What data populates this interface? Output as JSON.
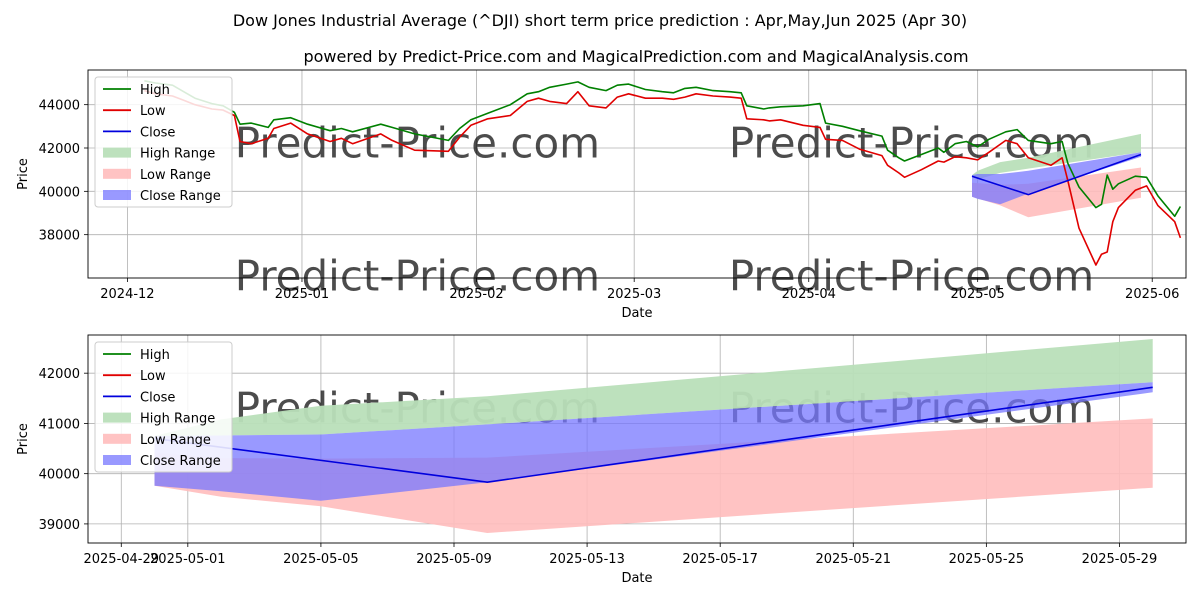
{
  "title": "Dow Jones Industrial Average (^DJI) short term price prediction : Apr,May,Jun 2025 (Apr 30)",
  "subtitle": "powered by Predict-Price.com and MagicalPrediction.com and MagicalAnalysis.com",
  "watermark": "Predict-Price.com",
  "colors": {
    "high": "#008000",
    "low": "#e00000",
    "close": "#0000dd",
    "high_range": "#b9dfb9",
    "low_range": "#ffbcbc",
    "close_range": "#7777ff"
  },
  "chart_data": [
    {
      "type": "line",
      "xlabel": "Date",
      "ylabel": "Price",
      "xlim": [
        "2024-11-24",
        "2025-06-07"
      ],
      "ylim": [
        36000,
        45600
      ],
      "yticks": [
        38000,
        40000,
        42000,
        44000
      ],
      "xticks": [
        {
          "date": "2024-12-01",
          "label": "2024-12"
        },
        {
          "date": "2025-01-01",
          "label": "2025-01"
        },
        {
          "date": "2025-02-01",
          "label": "2025-02"
        },
        {
          "date": "2025-03-01",
          "label": "2025-03"
        },
        {
          "date": "2025-04-01",
          "label": "2025-04"
        },
        {
          "date": "2025-05-01",
          "label": "2025-05"
        },
        {
          "date": "2025-06-01",
          "label": "2025-06"
        }
      ],
      "legend": {
        "position": "top-left",
        "entries": [
          "High",
          "Low",
          "Close",
          "High Range",
          "Low Range",
          "Close Range"
        ]
      },
      "grid": true,
      "series": [
        {
          "name": "High",
          "points": [
            [
              "2024-12-04",
              45100
            ],
            [
              "2024-12-06",
              45000
            ],
            [
              "2024-12-09",
              44900
            ],
            [
              "2024-12-11",
              44600
            ],
            [
              "2024-12-13",
              44300
            ],
            [
              "2024-12-16",
              44050
            ],
            [
              "2024-12-18",
              43950
            ],
            [
              "2024-12-20",
              43650
            ],
            [
              "2024-12-21",
              43100
            ],
            [
              "2024-12-23",
              43150
            ],
            [
              "2024-12-26",
              42950
            ],
            [
              "2024-12-27",
              43300
            ],
            [
              "2024-12-30",
              43400
            ],
            [
              "2025-01-02",
              43100
            ],
            [
              "2025-01-06",
              42800
            ],
            [
              "2025-01-08",
              42900
            ],
            [
              "2025-01-10",
              42750
            ],
            [
              "2025-01-15",
              43100
            ],
            [
              "2025-01-17",
              42950
            ],
            [
              "2025-01-21",
              42650
            ],
            [
              "2025-01-27",
              42350
            ],
            [
              "2025-01-29",
              42900
            ],
            [
              "2025-01-31",
              43300
            ],
            [
              "2025-02-03",
              43600
            ],
            [
              "2025-02-07",
              44000
            ],
            [
              "2025-02-10",
              44500
            ],
            [
              "2025-02-12",
              44600
            ],
            [
              "2025-02-14",
              44800
            ],
            [
              "2025-02-17",
              44950
            ],
            [
              "2025-02-19",
              45050
            ],
            [
              "2025-02-21",
              44800
            ],
            [
              "2025-02-24",
              44650
            ],
            [
              "2025-02-26",
              44900
            ],
            [
              "2025-02-28",
              44950
            ],
            [
              "2025-03-03",
              44700
            ],
            [
              "2025-03-06",
              44600
            ],
            [
              "2025-03-08",
              44550
            ],
            [
              "2025-03-10",
              44750
            ],
            [
              "2025-03-12",
              44800
            ],
            [
              "2025-03-15",
              44650
            ],
            [
              "2025-03-18",
              44600
            ],
            [
              "2025-03-20",
              44550
            ],
            [
              "2025-03-21",
              43950
            ],
            [
              "2025-03-24",
              43800
            ],
            [
              "2025-03-25",
              43850
            ],
            [
              "2025-03-27",
              43900
            ],
            [
              "2025-03-31",
              43950
            ],
            [
              "2025-04-03",
              44050
            ],
            [
              "2025-04-04",
              43150
            ],
            [
              "2025-04-07",
              43000
            ],
            [
              "2025-04-10",
              42800
            ],
            [
              "2025-04-14",
              42550
            ],
            [
              "2025-04-15",
              41900
            ],
            [
              "2025-04-17",
              41550
            ],
            [
              "2025-04-18",
              41400
            ],
            [
              "2025-04-21",
              41700
            ],
            [
              "2025-04-24",
              42000
            ],
            [
              "2025-04-25",
              41800
            ],
            [
              "2025-04-27",
              42200
            ],
            [
              "2025-04-29",
              42300
            ],
            [
              "2025-05-01",
              42050
            ],
            [
              "2025-05-03",
              42400
            ],
            [
              "2025-05-06",
              42750
            ],
            [
              "2025-05-08",
              42850
            ],
            [
              "2025-05-10",
              42350
            ],
            [
              "2025-05-14",
              42200
            ],
            [
              "2025-05-16",
              42300
            ],
            [
              "2025-05-17",
              41300
            ],
            [
              "2025-05-19",
              40200
            ],
            [
              "2025-05-22",
              39250
            ],
            [
              "2025-05-23",
              39400
            ],
            [
              "2025-05-24",
              40750
            ],
            [
              "2025-05-25",
              40100
            ],
            [
              "2025-05-26",
              40350
            ],
            [
              "2025-05-29",
              40700
            ],
            [
              "2025-05-31",
              40650
            ],
            [
              "2025-06-02",
              39800
            ],
            [
              "2025-06-05",
              38850
            ],
            [
              "2025-06-06",
              39300
            ]
          ]
        },
        {
          "name": "Low",
          "points": [
            [
              "2024-12-04",
              44650
            ],
            [
              "2024-12-06",
              44500
            ],
            [
              "2024-12-09",
              44400
            ],
            [
              "2024-12-11",
              44200
            ],
            [
              "2024-12-13",
              44000
            ],
            [
              "2024-12-16",
              43800
            ],
            [
              "2024-12-18",
              43750
            ],
            [
              "2024-12-20",
              43500
            ],
            [
              "2024-12-21",
              42300
            ],
            [
              "2024-12-23",
              42200
            ],
            [
              "2024-12-26",
              42450
            ],
            [
              "2024-12-27",
              42900
            ],
            [
              "2024-12-30",
              43150
            ],
            [
              "2025-01-02",
              42650
            ],
            [
              "2025-01-06",
              42300
            ],
            [
              "2025-01-08",
              42450
            ],
            [
              "2025-01-10",
              42200
            ],
            [
              "2025-01-15",
              42650
            ],
            [
              "2025-01-17",
              42350
            ],
            [
              "2025-01-21",
              41900
            ],
            [
              "2025-01-27",
              41850
            ],
            [
              "2025-01-29",
              42500
            ],
            [
              "2025-01-31",
              43050
            ],
            [
              "2025-02-03",
              43350
            ],
            [
              "2025-02-07",
              43500
            ],
            [
              "2025-02-10",
              44150
            ],
            [
              "2025-02-12",
              44300
            ],
            [
              "2025-02-14",
              44150
            ],
            [
              "2025-02-17",
              44050
            ],
            [
              "2025-02-19",
              44600
            ],
            [
              "2025-02-21",
              43950
            ],
            [
              "2025-02-24",
              43850
            ],
            [
              "2025-02-26",
              44350
            ],
            [
              "2025-02-28",
              44500
            ],
            [
              "2025-03-03",
              44300
            ],
            [
              "2025-03-06",
              44300
            ],
            [
              "2025-03-08",
              44250
            ],
            [
              "2025-03-10",
              44350
            ],
            [
              "2025-03-12",
              44500
            ],
            [
              "2025-03-15",
              44400
            ],
            [
              "2025-03-18",
              44350
            ],
            [
              "2025-03-20",
              44300
            ],
            [
              "2025-03-21",
              43350
            ],
            [
              "2025-03-24",
              43300
            ],
            [
              "2025-03-25",
              43250
            ],
            [
              "2025-03-27",
              43300
            ],
            [
              "2025-03-31",
              43050
            ],
            [
              "2025-04-03",
              42950
            ],
            [
              "2025-04-04",
              42400
            ],
            [
              "2025-04-07",
              42350
            ],
            [
              "2025-04-10",
              41950
            ],
            [
              "2025-04-14",
              41650
            ],
            [
              "2025-04-15",
              41200
            ],
            [
              "2025-04-17",
              40850
            ],
            [
              "2025-04-18",
              40650
            ],
            [
              "2025-04-21",
              41000
            ],
            [
              "2025-04-24",
              41400
            ],
            [
              "2025-04-25",
              41350
            ],
            [
              "2025-04-27",
              41600
            ],
            [
              "2025-04-29",
              41550
            ],
            [
              "2025-05-01",
              41450
            ],
            [
              "2025-05-03",
              41800
            ],
            [
              "2025-05-06",
              42350
            ],
            [
              "2025-05-08",
              42200
            ],
            [
              "2025-05-10",
              41550
            ],
            [
              "2025-05-14",
              41200
            ],
            [
              "2025-05-16",
              41550
            ],
            [
              "2025-05-17",
              40500
            ],
            [
              "2025-05-19",
              38300
            ],
            [
              "2025-05-22",
              36600
            ],
            [
              "2025-05-23",
              37100
            ],
            [
              "2025-05-24",
              37200
            ],
            [
              "2025-05-25",
              38600
            ],
            [
              "2025-05-26",
              39250
            ],
            [
              "2025-05-29",
              40050
            ],
            [
              "2025-05-31",
              40250
            ],
            [
              "2025-06-02",
              39350
            ],
            [
              "2025-06-05",
              38600
            ],
            [
              "2025-06-06",
              37850
            ]
          ]
        },
        {
          "name": "Close",
          "points": [
            [
              "2025-04-30",
              40700
            ],
            [
              "2025-05-10",
              39850
            ],
            [
              "2025-05-30",
              41700
            ]
          ]
        }
      ],
      "bands": [
        {
          "name": "High Range",
          "x": [
            "2025-04-30",
            "2025-05-01",
            "2025-05-05",
            "2025-05-10",
            "2025-05-30"
          ],
          "upper": [
            40750,
            40950,
            41350,
            41550,
            42650
          ],
          "lower": [
            40750,
            40550,
            40850,
            41050,
            41800
          ]
        },
        {
          "name": "Low Range",
          "x": [
            "2025-04-30",
            "2025-05-05",
            "2025-05-10",
            "2025-05-30"
          ],
          "upper": [
            40400,
            40300,
            40350,
            41100
          ],
          "lower": [
            39750,
            39350,
            38800,
            39700
          ]
        },
        {
          "name": "Close Range",
          "x": [
            "2025-04-30",
            "2025-05-01",
            "2025-05-05",
            "2025-05-10",
            "2025-05-30"
          ],
          "upper": [
            40750,
            40800,
            40800,
            40950,
            41800
          ],
          "lower": [
            39750,
            39650,
            39400,
            39900,
            41600
          ]
        }
      ]
    },
    {
      "type": "line",
      "xlabel": "Date",
      "ylabel": "Price",
      "xlim": [
        "2025-04-28",
        "2025-05-31"
      ],
      "ylim": [
        38620,
        42760
      ],
      "yticks": [
        39000,
        40000,
        41000,
        42000
      ],
      "xticks": [
        {
          "date": "2025-04-29",
          "label": "2025-04-29"
        },
        {
          "date": "2025-05-01",
          "label": "2025-05-01"
        },
        {
          "date": "2025-05-05",
          "label": "2025-05-05"
        },
        {
          "date": "2025-05-09",
          "label": "2025-05-09"
        },
        {
          "date": "2025-05-13",
          "label": "2025-05-13"
        },
        {
          "date": "2025-05-17",
          "label": "2025-05-17"
        },
        {
          "date": "2025-05-21",
          "label": "2025-05-21"
        },
        {
          "date": "2025-05-25",
          "label": "2025-05-25"
        },
        {
          "date": "2025-05-29",
          "label": "2025-05-29"
        }
      ],
      "legend": {
        "position": "top-left",
        "entries": [
          "High",
          "Low",
          "Close",
          "High Range",
          "Low Range",
          "Close Range"
        ]
      },
      "grid": true,
      "series": [
        {
          "name": "High",
          "points": []
        },
        {
          "name": "Low",
          "points": []
        },
        {
          "name": "Close",
          "points": [
            [
              "2025-04-30",
              40700
            ],
            [
              "2025-05-10",
              39830
            ],
            [
              "2025-05-30",
              41720
            ]
          ]
        }
      ],
      "bands": [
        {
          "name": "High Range",
          "x": [
            "2025-04-30",
            "2025-05-02",
            "2025-05-05",
            "2025-05-10",
            "2025-05-30"
          ],
          "upper": [
            40750,
            41080,
            41350,
            41540,
            42680
          ],
          "lower": [
            40750,
            40760,
            40780,
            40980,
            41820
          ]
        },
        {
          "name": "Low Range",
          "x": [
            "2025-04-30",
            "2025-05-02",
            "2025-05-05",
            "2025-05-10",
            "2025-05-30"
          ],
          "upper": [
            40420,
            40310,
            40300,
            40320,
            41100
          ],
          "lower": [
            39760,
            39540,
            39350,
            38820,
            39720
          ]
        },
        {
          "name": "Close Range",
          "x": [
            "2025-04-30",
            "2025-05-02",
            "2025-05-05",
            "2025-05-10",
            "2025-05-30"
          ],
          "upper": [
            40750,
            40760,
            40780,
            40980,
            41820
          ],
          "lower": [
            39760,
            39650,
            39460,
            39830,
            41620
          ]
        }
      ]
    }
  ]
}
